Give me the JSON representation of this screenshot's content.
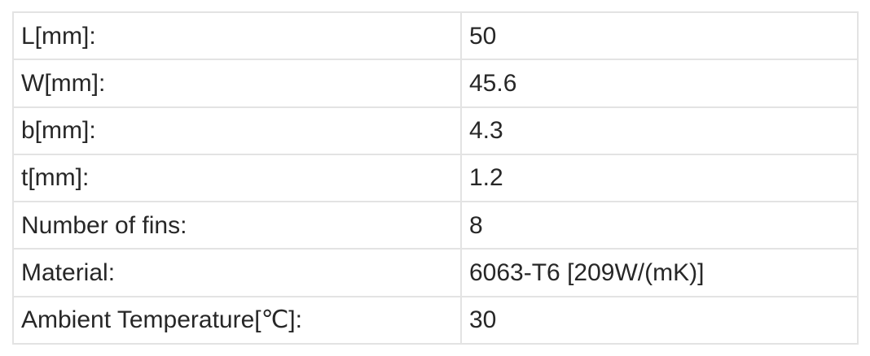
{
  "table": {
    "rows": [
      {
        "label": "L[mm]:",
        "value": "50"
      },
      {
        "label": "W[mm]:",
        "value": "45.6"
      },
      {
        "label": "b[mm]:",
        "value": "4.3"
      },
      {
        "label": "t[mm]:",
        "value": "1.2"
      },
      {
        "label": "Number of fins:",
        "value": "8"
      },
      {
        "label": "Material:",
        "value": "6063-T6 [209W/(mK)]"
      },
      {
        "label": "Ambient Temperature[℃]:",
        "value": "30"
      }
    ]
  },
  "colors": {
    "background": "#ffffff",
    "border": "#e3e3e3",
    "text": "#272727"
  }
}
